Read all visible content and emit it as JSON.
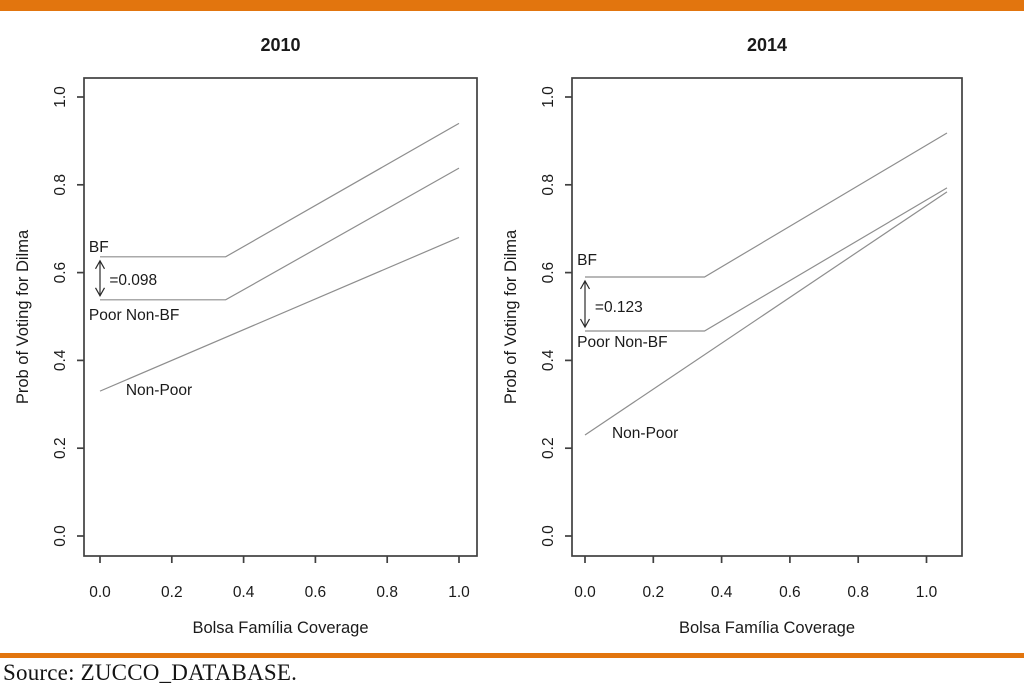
{
  "page": {
    "accent_color": "#E2750E",
    "source_text": "Source: ZUCCO_DATABASE."
  },
  "chart_data": [
    {
      "type": "line",
      "title": "2010",
      "xlabel": "Bolsa Família Coverage",
      "ylabel": "Prob of Voting for Dilma",
      "xlim": [
        -0.045,
        1.05
      ],
      "ylim": [
        -0.046,
        1.043
      ],
      "grid": false,
      "legend": "inline-labels",
      "xticks": {
        "values": [
          0.0,
          0.2,
          0.4,
          0.6,
          0.8,
          1.0
        ],
        "labels": [
          "0.0",
          "0.2",
          "0.4",
          "0.6",
          "0.8",
          "1.0"
        ]
      },
      "yticks": {
        "values": [
          0.0,
          0.2,
          0.4,
          0.6,
          0.8,
          1.0
        ],
        "labels": [
          "0.0",
          "0.2",
          "0.4",
          "0.6",
          "0.8",
          "1.0"
        ]
      },
      "series": [
        {
          "name": "BF",
          "x": [
            0,
            0.35,
            1.0
          ],
          "y": [
            0.636,
            0.636,
            0.94
          ],
          "label": {
            "text": "BF",
            "x": -0.031,
            "y": 0.647
          }
        },
        {
          "name": "Poor Non-BF",
          "x": [
            0,
            0.35,
            1.0
          ],
          "y": [
            0.538,
            0.538,
            0.838
          ],
          "label": {
            "text": "Poor Non-BF",
            "x": -0.031,
            "y": 0.492
          }
        },
        {
          "name": "Non-Poor",
          "x": [
            0,
            1.0
          ],
          "y": [
            0.33,
            0.68
          ],
          "label": {
            "text": "Non-Poor",
            "x": 0.072,
            "y": 0.321
          }
        }
      ],
      "annotation": {
        "text": "=0.098",
        "arrow_x": 0.0,
        "y_from": 0.538,
        "y_to": 0.636,
        "text_x": 0.026,
        "text_y": 0.572
      }
    },
    {
      "type": "line",
      "title": "2014",
      "xlabel": "Bolsa Família Coverage",
      "ylabel": "Prob of Voting for Dilma",
      "xlim": [
        -0.038,
        1.104
      ],
      "ylim": [
        -0.046,
        1.043
      ],
      "grid": false,
      "legend": "inline-labels",
      "xticks": {
        "values": [
          0.0,
          0.2,
          0.4,
          0.6,
          0.8,
          1.0
        ],
        "labels": [
          "0.0",
          "0.2",
          "0.4",
          "0.6",
          "0.8",
          "1.0"
        ]
      },
      "yticks": {
        "values": [
          0.0,
          0.2,
          0.4,
          0.6,
          0.8,
          1.0
        ],
        "labels": [
          "0.0",
          "0.2",
          "0.4",
          "0.6",
          "0.8",
          "1.0"
        ]
      },
      "series": [
        {
          "name": "BF",
          "x": [
            0,
            0.35,
            1.06
          ],
          "y": [
            0.59,
            0.59,
            0.918
          ],
          "label": {
            "text": "BF",
            "x": -0.023,
            "y": 0.617
          }
        },
        {
          "name": "Poor Non-BF",
          "x": [
            0,
            0.35,
            1.06
          ],
          "y": [
            0.467,
            0.467,
            0.793
          ],
          "label": {
            "text": "Poor Non-BF",
            "x": -0.023,
            "y": 0.43
          }
        },
        {
          "name": "Non-Poor",
          "x": [
            0,
            1.06
          ],
          "y": [
            0.23,
            0.784
          ],
          "label": {
            "text": "Non-Poor",
            "x": 0.079,
            "y": 0.223
          }
        }
      ],
      "annotation": {
        "text": "=0.123",
        "arrow_x": 0.0,
        "y_from": 0.467,
        "y_to": 0.59,
        "text_x": 0.029,
        "text_y": 0.51
      }
    }
  ],
  "style": {
    "series_line_color": "#8e8e8e",
    "axis_color": "#404040",
    "text_color": "#1a1a1a"
  }
}
